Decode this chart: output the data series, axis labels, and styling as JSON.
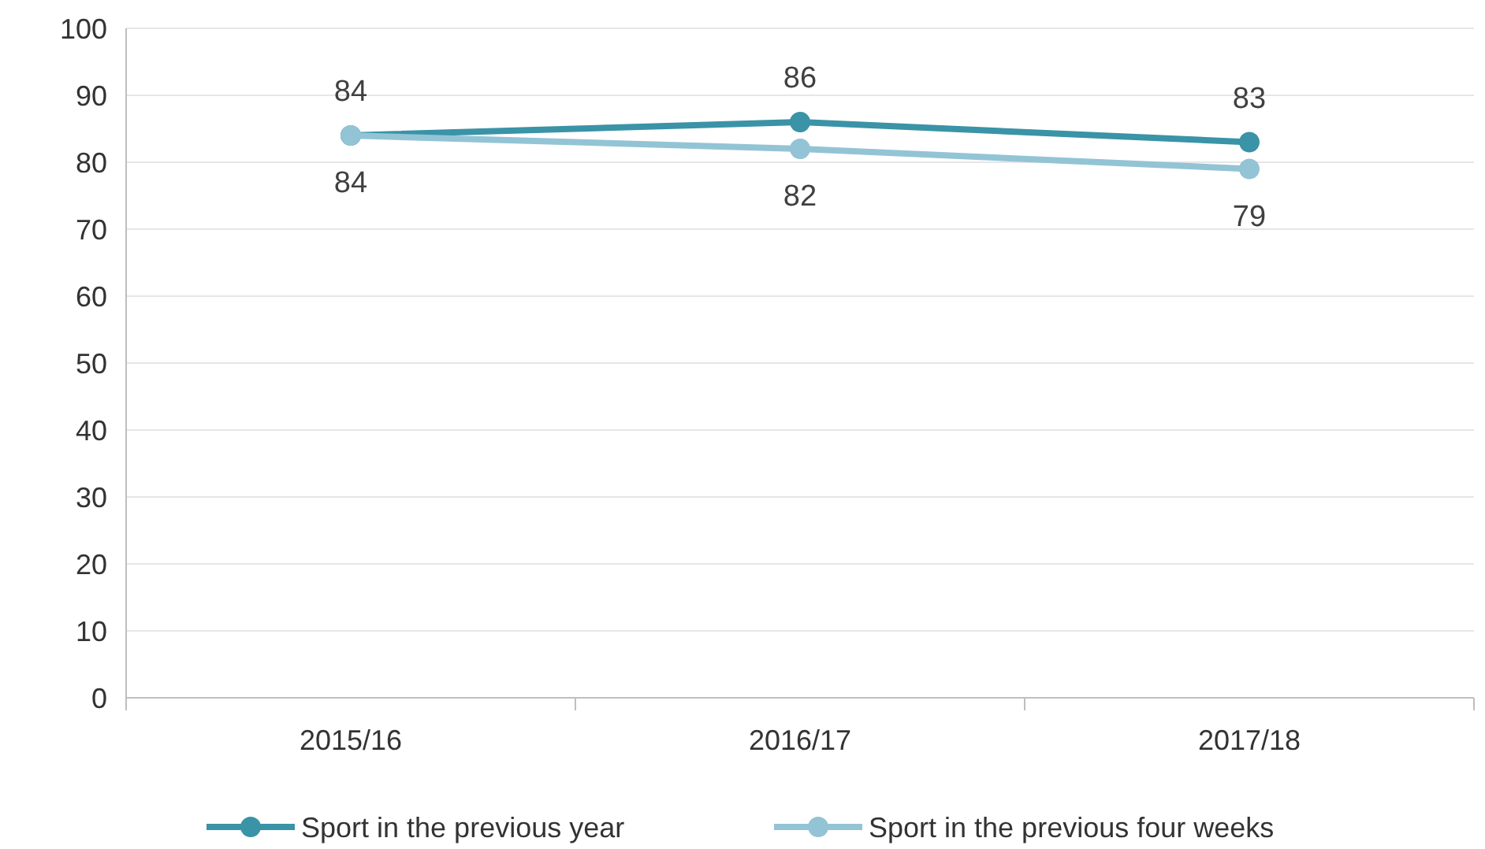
{
  "chart_data": {
    "type": "line",
    "categories": [
      "2015/16",
      "2016/17",
      "2017/18"
    ],
    "series": [
      {
        "name": "Sport in the previous year",
        "color": "#3a93a6",
        "values": [
          84,
          86,
          83
        ]
      },
      {
        "name": "Sport in the previous four weeks",
        "color": "#93c4d5",
        "values": [
          84,
          82,
          79
        ]
      }
    ],
    "ylim": [
      0,
      100
    ],
    "yticks": [
      0,
      10,
      20,
      30,
      40,
      50,
      60,
      70,
      80,
      90,
      100
    ],
    "grid": "y",
    "legend": "bottom",
    "marker": "circle",
    "line_style": "solid",
    "data_labels": true
  }
}
